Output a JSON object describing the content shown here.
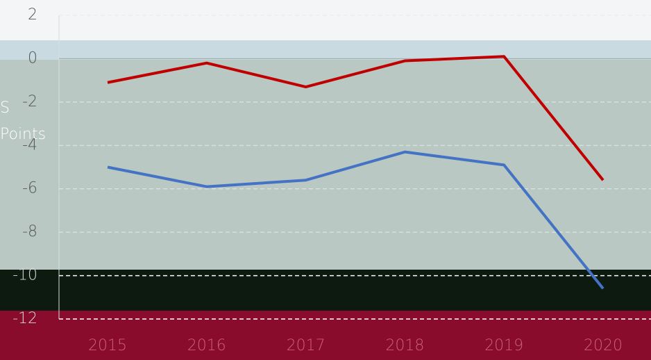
{
  "chart_data": {
    "type": "line",
    "label_fragments": [
      "S",
      "Points"
    ],
    "categories": [
      "2015",
      "2016",
      "2017",
      "2018",
      "2019",
      "2020"
    ],
    "series": [
      {
        "color": "#c00000",
        "values": [
          -1.1,
          -0.2,
          -1.3,
          -0.1,
          0.1,
          -5.6
        ]
      },
      {
        "color": "#4472c4",
        "values": [
          -5.0,
          -5.9,
          -5.6,
          -4.3,
          -4.9,
          -10.6
        ]
      }
    ],
    "ylim": [
      -12,
      2
    ],
    "yticks": [
      -12,
      -10,
      -8,
      -6,
      -4,
      -2,
      0,
      2
    ],
    "grid": true
  }
}
